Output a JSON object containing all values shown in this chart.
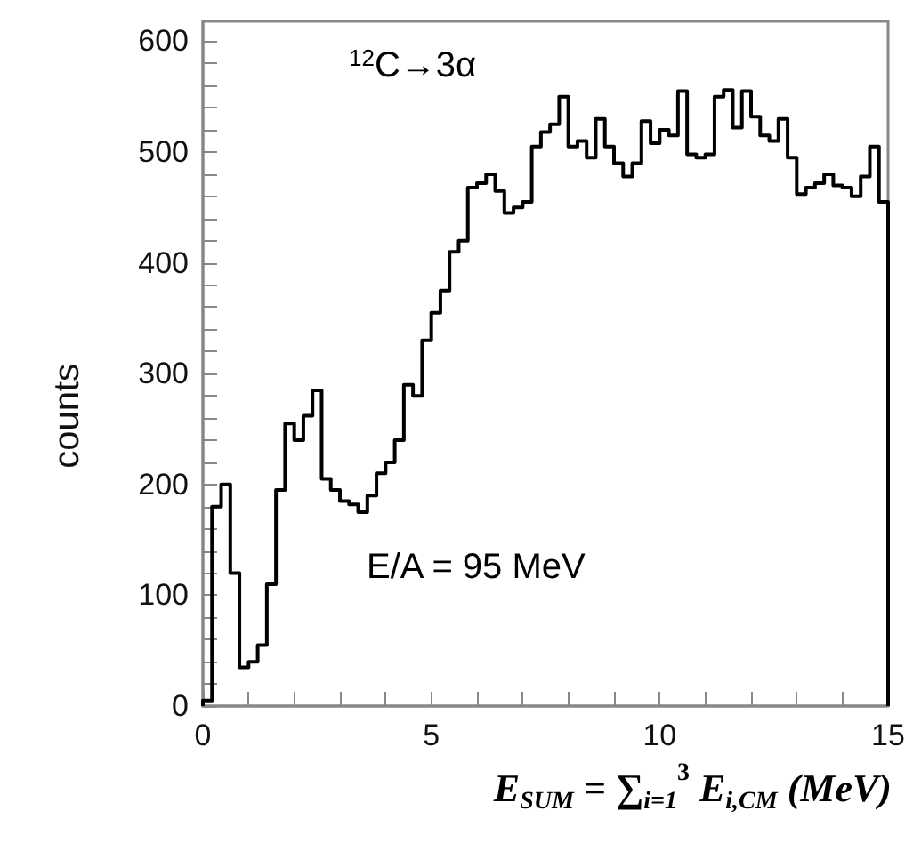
{
  "chart_data": {
    "type": "histogram",
    "xlabel": "E$_{SUM}$ = ∑$_{i=1}$$^{3}$ E$_{i,CM}$ (MeV)",
    "ylabel": "counts",
    "annotations": [
      "$^{12}$C→3α",
      "E/A = 95 MeV"
    ],
    "bins": [
      0,
      0.2,
      0.4,
      0.6,
      0.8,
      1,
      1.2,
      1.4,
      1.6,
      1.8,
      2,
      2.2,
      2.4,
      2.6,
      2.8,
      3,
      3.2,
      3.4,
      3.6,
      3.8,
      4,
      4.2,
      4.4,
      4.6,
      4.8,
      5,
      5.2,
      5.4,
      5.6,
      5.8,
      6,
      6.2,
      6.4,
      6.6,
      6.8,
      7,
      7.2,
      7.4,
      7.6,
      7.8,
      8,
      8.2,
      8.4,
      8.6,
      8.8,
      9,
      9.2,
      9.4,
      9.6,
      9.8,
      10,
      10.2,
      10.4,
      10.6,
      10.8,
      11,
      11.2,
      11.4,
      11.6,
      11.8,
      12,
      12.2,
      12.4,
      12.6,
      12.8,
      13,
      13.2,
      13.4,
      13.6,
      13.8,
      14,
      14.2,
      14.4,
      14.6,
      14.8,
      15
    ],
    "values": [
      5,
      180,
      200,
      120,
      35,
      40,
      55,
      110,
      195,
      255,
      240,
      262,
      285,
      205,
      195,
      185,
      182,
      175,
      190,
      210,
      220,
      240,
      290,
      280,
      330,
      355,
      375,
      410,
      420,
      468,
      472,
      480,
      465,
      445,
      450,
      455,
      505,
      518,
      525,
      550,
      505,
      510,
      495,
      530,
      505,
      490,
      478,
      490,
      528,
      508,
      520,
      515,
      555,
      498,
      495,
      498,
      550,
      556,
      522,
      555,
      532,
      515,
      510,
      530,
      495,
      462,
      468,
      472,
      480,
      470,
      468,
      460,
      478,
      505,
      455
    ],
    "color": "#000000",
    "xlim": [
      0,
      15
    ],
    "xticks": [
      0,
      {
        "value": 1,
        "label": null
      },
      {
        "value": 2,
        "label": null
      },
      {
        "value": 3,
        "label": null
      },
      {
        "value": 4,
        "label": null
      },
      5,
      {
        "value": 6,
        "label": null
      },
      {
        "value": 7,
        "label": null
      },
      {
        "value": 8,
        "label": null
      },
      {
        "value": 9,
        "label": null
      },
      10,
      {
        "value": 11,
        "label": null
      },
      {
        "value": 12,
        "label": null
      },
      {
        "value": 13,
        "label": null
      },
      {
        "value": 14,
        "label": null
      },
      15
    ],
    "ylim": [
      0,
      618
    ],
    "yticks": [
      0,
      {
        "value": 20,
        "label": null
      },
      {
        "value": 40,
        "label": null
      },
      {
        "value": 60,
        "label": null
      },
      {
        "value": 80,
        "label": null
      },
      100,
      {
        "value": 120,
        "label": null
      },
      {
        "value": 140,
        "label": null
      },
      {
        "value": 160,
        "label": null
      },
      {
        "value": 180,
        "label": null
      },
      200,
      {
        "value": 220,
        "label": null
      },
      {
        "value": 240,
        "label": null
      },
      {
        "value": 260,
        "label": null
      },
      {
        "value": 280,
        "label": null
      },
      300,
      {
        "value": 320,
        "label": null
      },
      {
        "value": 340,
        "label": null
      },
      {
        "value": 360,
        "label": null
      },
      {
        "value": 380,
        "label": null
      },
      400,
      {
        "value": 420,
        "label": null
      },
      {
        "value": 440,
        "label": null
      },
      {
        "value": 460,
        "label": null
      },
      {
        "value": 480,
        "label": null
      },
      500,
      {
        "value": 520,
        "label": null
      },
      {
        "value": 540,
        "label": null
      },
      {
        "value": 560,
        "label": null
      },
      {
        "value": 580,
        "label": null
      },
      600
    ],
    "grid": false
  }
}
